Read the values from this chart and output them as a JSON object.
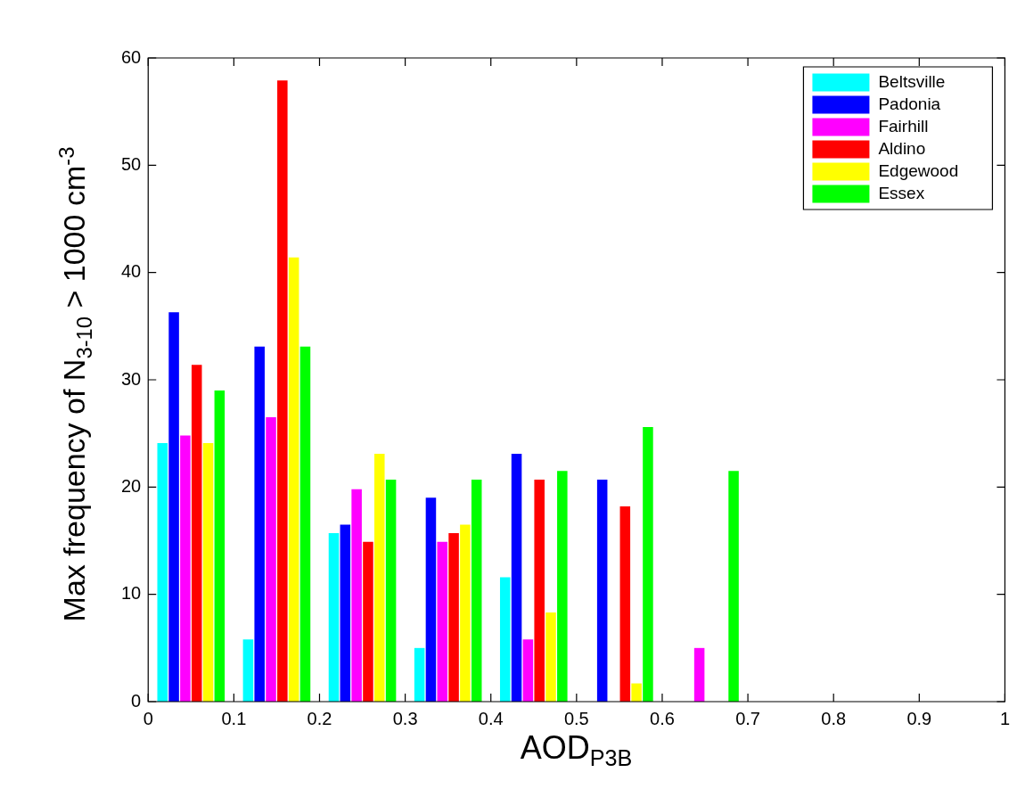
{
  "chart_data": {
    "type": "bar",
    "xlabel": "AOD$_{P3B}$",
    "ylabel": "Max frequency of N$_{3-10}$ > 1000 cm$^{-3}$",
    "x": [
      0.05,
      0.15,
      0.25,
      0.35,
      0.45,
      0.55,
      0.65
    ],
    "series": [
      {
        "name": "Beltsville",
        "color": "#00ffff",
        "values": [
          24.1,
          5.8,
          15.7,
          5.0,
          11.6,
          0,
          0
        ]
      },
      {
        "name": "Padonia",
        "color": "#0000ff",
        "values": [
          36.3,
          33.1,
          16.5,
          19.0,
          23.1,
          20.7,
          0
        ]
      },
      {
        "name": "Fairhill",
        "color": "#ff00ff",
        "values": [
          24.8,
          26.5,
          19.8,
          14.9,
          5.8,
          0,
          5.0
        ]
      },
      {
        "name": "Aldino",
        "color": "#ff0000",
        "values": [
          31.4,
          57.9,
          14.9,
          15.7,
          20.7,
          18.2,
          0
        ]
      },
      {
        "name": "Edgewood",
        "color": "#ffff00",
        "values": [
          24.1,
          41.4,
          23.1,
          16.5,
          8.3,
          1.7,
          0
        ]
      },
      {
        "name": "Essex",
        "color": "#00ff00",
        "values": [
          29.0,
          33.1,
          20.7,
          20.7,
          21.5,
          25.6,
          21.5
        ]
      }
    ],
    "xlim": [
      0,
      1
    ],
    "xticks": [
      0,
      0.1,
      0.2,
      0.3,
      0.4,
      0.5,
      0.6,
      0.7,
      0.8,
      0.9,
      1
    ],
    "ylim": [
      0,
      60
    ],
    "yticks": [
      0,
      10,
      20,
      30,
      40,
      50,
      60
    ],
    "legend": "top right"
  }
}
